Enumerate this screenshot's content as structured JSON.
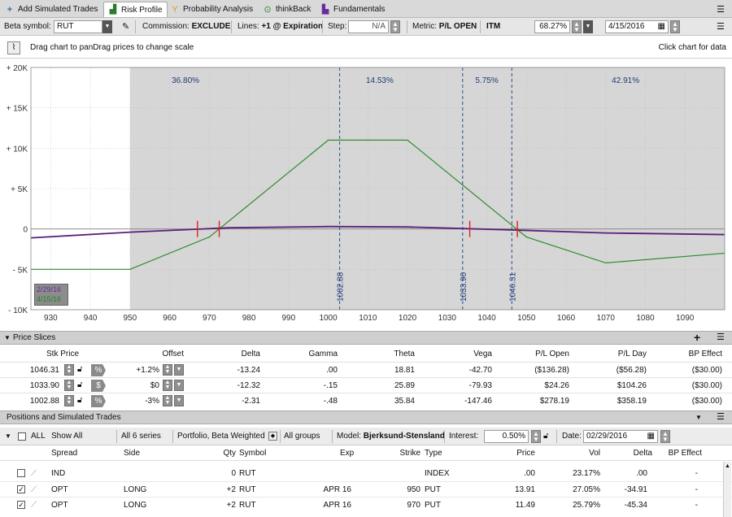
{
  "tabs": [
    {
      "label": "Add Simulated Trades",
      "icon": "plus-icon"
    },
    {
      "label": "Risk Profile",
      "icon": "risk-profile-icon",
      "active": true
    },
    {
      "label": "Probability Analysis",
      "icon": "probability-icon"
    },
    {
      "label": "thinkBack",
      "icon": "thinkback-icon"
    },
    {
      "label": "Fundamentals",
      "icon": "fundamentals-icon"
    }
  ],
  "toolbar": {
    "beta_label": "Beta symbol:",
    "beta_value": "RUT",
    "commission_label": "Commission:",
    "commission_value": "EXCLUDE",
    "lines_label": "Lines:",
    "lines_value": "+1 @ Expiration",
    "step_label": "Step:",
    "step_value": "N/A",
    "metric_label": "Metric:",
    "metric_value": "P/L OPEN",
    "itm_label": "ITM",
    "itm_value": "68.27%",
    "date_value": "4/15/2016"
  },
  "hint": {
    "drag": "Drag chart to panDrag prices to change scale",
    "click": "Click chart for data"
  },
  "chart_data": {
    "type": "line",
    "xlim": [
      925,
      1100
    ],
    "ylim": [
      -10000,
      20000
    ],
    "x_ticks": [
      "930",
      "940",
      "950",
      "960",
      "970",
      "980",
      "990",
      "1000",
      "1010",
      "1020",
      "1030",
      "1040",
      "1050",
      "1060",
      "1070",
      "1080",
      "1090"
    ],
    "y_ticks": [
      "+ 20K",
      "+ 15K",
      "+ 10K",
      "+ 5K",
      "0",
      "- 5K",
      "- 10K"
    ],
    "y_tick_values": [
      20000,
      15000,
      10000,
      5000,
      0,
      -5000,
      -10000
    ],
    "shaded_from": 950,
    "probabilities": [
      {
        "text": "36.80%",
        "x": 964
      },
      {
        "text": "14.53%",
        "x": 1013
      },
      {
        "text": "5.75%",
        "x": 1040
      },
      {
        "text": "42.91%",
        "x": 1075
      }
    ],
    "price_lines": [
      {
        "x": 1002.88,
        "label": "1002.88"
      },
      {
        "x": 1033.9,
        "label": "1033.90"
      },
      {
        "x": 1046.31,
        "label": "1046.31"
      }
    ],
    "breakevens": [
      967,
      972.5,
      1035.7,
      1047.7
    ],
    "series": [
      {
        "name": "4/15/16",
        "color": "#2e8b2e",
        "x": [
          925,
          950,
          970,
          1000,
          1020,
          1050,
          1070,
          1100
        ],
        "y": [
          -5000,
          -5000,
          -1000,
          11000,
          11000,
          -1000,
          -4200,
          -3000
        ]
      },
      {
        "name": "2/29/16",
        "color": "#5a1f7a",
        "x": [
          925,
          950,
          975,
          1000,
          1020,
          1045,
          1070,
          1100
        ],
        "y": [
          -1100,
          -400,
          150,
          300,
          250,
          -100,
          -500,
          -700
        ]
      }
    ],
    "legend": [
      "2/29/16",
      "4/15/16"
    ]
  },
  "slices": {
    "title": "Price Slices",
    "headers": {
      "stk": "Stk Price",
      "offset": "Offset",
      "delta": "Delta",
      "gamma": "Gamma",
      "theta": "Theta",
      "vega": "Vega",
      "plopen": "P/L Open",
      "plday": "P/L Day",
      "bp": "BP Effect"
    },
    "rows": [
      {
        "stk": "1046.31",
        "unit": "%",
        "offset": "+1.2%",
        "delta": "-13.24",
        "gamma": ".00",
        "theta": "18.81",
        "vega": "-42.70",
        "plopen": "($136.28)",
        "plday": "($56.28)",
        "bp": "($30.00)"
      },
      {
        "stk": "1033.90",
        "unit": "$",
        "offset": "$0",
        "delta": "-12.32",
        "gamma": "-.15",
        "theta": "25.89",
        "vega": "-79.93",
        "plopen": "$24.26",
        "plday": "$104.26",
        "bp": "($30.00)"
      },
      {
        "stk": "1002.88",
        "unit": "%",
        "offset": "-3%",
        "delta": "-2.31",
        "gamma": "-.48",
        "theta": "35.84",
        "vega": "-147.46",
        "plopen": "$278.19",
        "plday": "$358.19",
        "bp": "($30.00)"
      }
    ]
  },
  "positions": {
    "title": "Positions and Simulated Trades",
    "all": "ALL",
    "show_all": "Show All",
    "series": "All 6 series",
    "portfolio": "Portfolio, Beta Weighted",
    "groups": "All groups",
    "model_label": "Model:",
    "model_value": "Bjerksund-Stensland",
    "interest_label": "Interest:",
    "interest_value": "0.50%",
    "date_label": "Date:",
    "date_value": "02/29/2016",
    "headers": {
      "spread": "Spread",
      "side": "Side",
      "qty": "Qty",
      "symbol": "Symbol",
      "exp": "Exp",
      "strike": "Strike",
      "type": "Type",
      "price": "Price",
      "vol": "Vol",
      "delta": "Delta",
      "bp": "BP Effect"
    },
    "rows": [
      {
        "checked": false,
        "spread": "IND",
        "side": "",
        "qty": "0",
        "symbol": "RUT",
        "exp": "",
        "strike": "",
        "type": "INDEX",
        "price": ".00",
        "vol": "23.17%",
        "delta": ".00",
        "bp": "-"
      },
      {
        "checked": true,
        "spread": "OPT",
        "side": "LONG",
        "qty": "+2",
        "symbol": "RUT",
        "exp": "APR 16",
        "strike": "950",
        "type": "PUT",
        "price": "13.91",
        "vol": "27.05%",
        "delta": "-34.91",
        "bp": "-"
      },
      {
        "checked": true,
        "spread": "OPT",
        "side": "LONG",
        "qty": "+2",
        "symbol": "RUT",
        "exp": "APR 16",
        "strike": "970",
        "type": "PUT",
        "price": "11.49",
        "vol": "25.79%",
        "delta": "-45.34",
        "bp": "-"
      }
    ]
  }
}
